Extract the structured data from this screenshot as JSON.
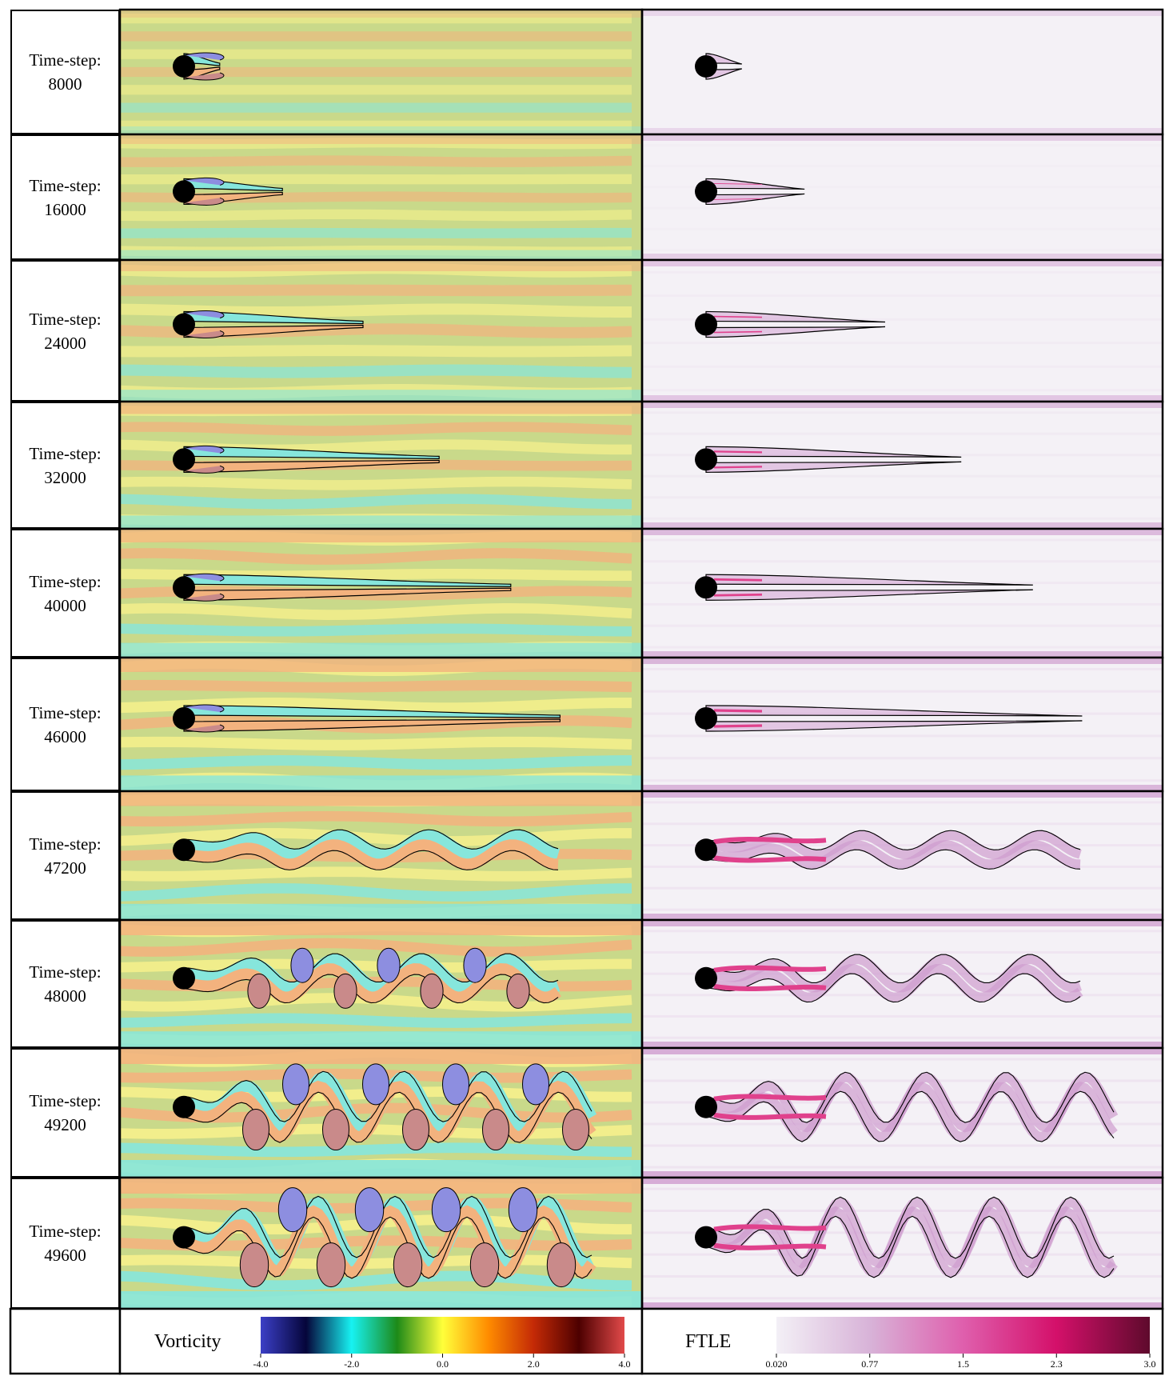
{
  "rows": [
    {
      "label": "Time-step:",
      "step": "8000",
      "wake": 0.08,
      "wave": 0.0,
      "wall": 0.0
    },
    {
      "label": "Time-step:",
      "step": "16000",
      "wake": 0.22,
      "wave": 0.0,
      "wall": 0.2
    },
    {
      "label": "Time-step:",
      "step": "24000",
      "wake": 0.4,
      "wave": 0.0,
      "wall": 0.4
    },
    {
      "label": "Time-step:",
      "step": "32000",
      "wake": 0.57,
      "wave": 0.0,
      "wall": 0.55
    },
    {
      "label": "Time-step:",
      "step": "40000",
      "wake": 0.73,
      "wave": 0.0,
      "wall": 0.7
    },
    {
      "label": "Time-step:",
      "step": "46000",
      "wake": 0.84,
      "wave": 0.02,
      "wall": 0.8
    },
    {
      "label": "Time-step:",
      "step": "47200",
      "wake": 0.84,
      "wave": 0.18,
      "wall": 0.85
    },
    {
      "label": "Time-step:",
      "step": "48000",
      "wake": 0.84,
      "wave": 0.35,
      "wall": 0.9
    },
    {
      "label": "Time-step:",
      "step": "49200",
      "wake": 0.92,
      "wave": 0.75,
      "wall": 1.0
    },
    {
      "label": "Time-step:",
      "step": "49600",
      "wake": 0.92,
      "wave": 0.95,
      "wall": 1.0
    }
  ],
  "legend": {
    "vorticity": {
      "title": "Vorticity",
      "ticks": [
        "-4.0",
        "-2.0",
        "0.0",
        "2.0",
        "4.0"
      ],
      "colors": [
        "#3b3fc6",
        "#05053a",
        "#17f2f2",
        "#1d8a18",
        "#ffff3a",
        "#ff8c00",
        "#c42a06",
        "#4d0000",
        "#e24a4a"
      ]
    },
    "ftle": {
      "title": "FTLE",
      "ticks": [
        "0.020",
        "0.77",
        "1.5",
        "2.3",
        "3.0"
      ],
      "colors": [
        "#f3f0f6",
        "#d8b3d8",
        "#df5fad",
        "#d4106a",
        "#5e0a2c"
      ]
    }
  },
  "colors": {
    "vort_neutral": "#c9d98a",
    "vort_yellow": "#f6f08c",
    "vort_orange": "#f3b27e",
    "vort_cyan": "#86e6dc",
    "vort_blue": "#8d8ee0",
    "vort_red": "#c98a8a",
    "ftle_bg": "#f4f1f6",
    "ftle_purple": "#cf9ccf",
    "ftle_magenta": "#e0418c"
  }
}
